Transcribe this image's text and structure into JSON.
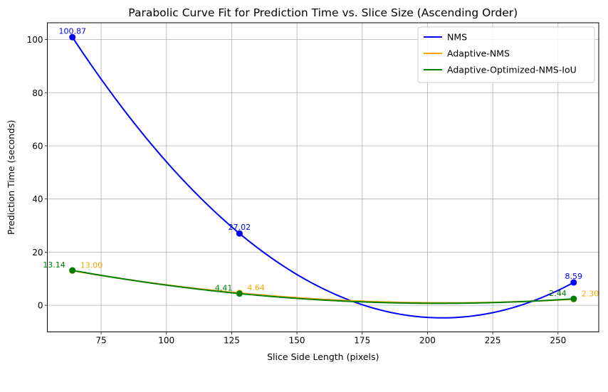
{
  "chart_data": {
    "type": "line",
    "title": "Parabolic Curve Fit for Prediction Time vs. Slice Size (Ascending Order)",
    "xlabel": "Slice Side Length (pixels)",
    "ylabel": "Prediction Time (seconds)",
    "xlim": [
      54.4,
      265.6
    ],
    "ylim": [
      -10.0,
      106.3
    ],
    "xticks": [
      75,
      100,
      125,
      150,
      175,
      200,
      225,
      250
    ],
    "yticks": [
      0,
      20,
      40,
      60,
      80,
      100
    ],
    "grid": true,
    "legend_position": "top-right",
    "x": [
      64,
      128,
      256
    ],
    "series": [
      {
        "name": "NMS",
        "color": "#0000ff",
        "values": [
          100.87,
          27.02,
          8.59
        ],
        "labels": [
          "100.87",
          "27.02",
          "8.59"
        ]
      },
      {
        "name": "Adaptive-NMS",
        "color": "#ffa500",
        "values": [
          13.0,
          4.64,
          2.3
        ],
        "labels": [
          "13.00",
          "4.64",
          "2.30"
        ]
      },
      {
        "name": "Adaptive-Optimized-NMS-IoU",
        "color": "#008000",
        "values": [
          13.14,
          4.41,
          2.44
        ],
        "labels": [
          "13.14",
          "4.41",
          "2.44"
        ]
      }
    ]
  }
}
